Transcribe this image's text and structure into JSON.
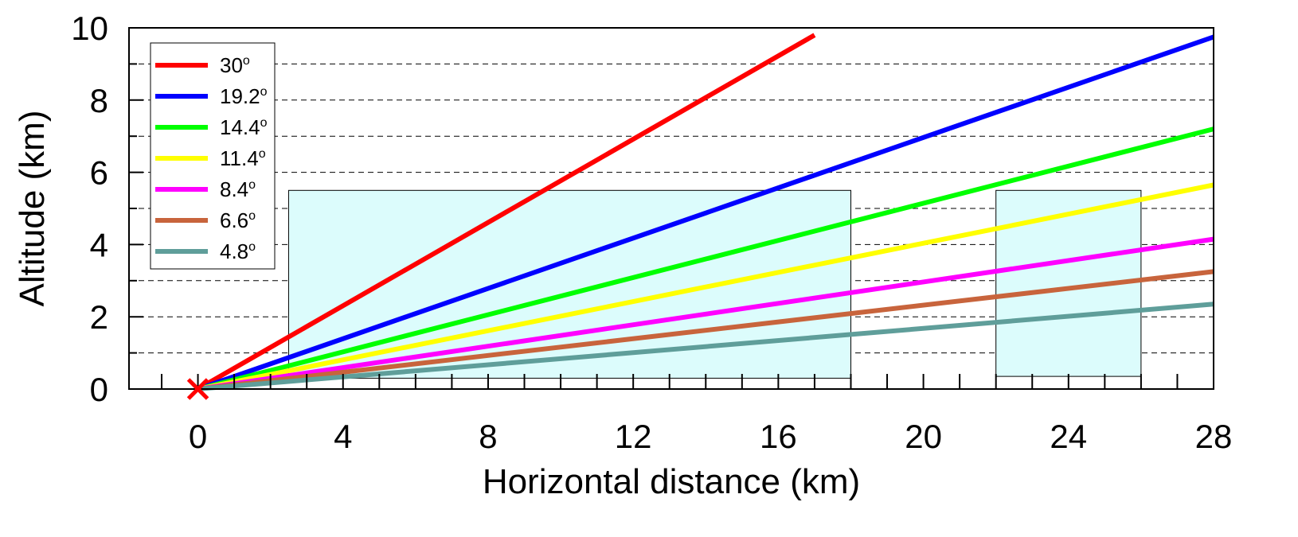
{
  "chart_data": {
    "type": "line",
    "xlabel": "Horizontal distance (km)",
    "ylabel": "Altitude (km)",
    "xlim": [
      -1.9,
      28
    ],
    "ylim": [
      0,
      10
    ],
    "x_ticks": [
      0,
      4,
      8,
      12,
      16,
      20,
      24,
      28
    ],
    "y_ticks": [
      0,
      2,
      4,
      6,
      8,
      10
    ],
    "grid": {
      "horizontal_dashed": true,
      "values": [
        1,
        2,
        3,
        4,
        5,
        6,
        7,
        8,
        9
      ]
    },
    "legend": {
      "placement": "top-left"
    },
    "origin_marker": {
      "x": 0,
      "y": 0,
      "symbol": "x",
      "color": "#ff0000"
    },
    "shaded_regions": [
      {
        "x": [
          2.5,
          18
        ],
        "y": [
          0.3,
          5.5
        ],
        "color": "#dcfcfc"
      },
      {
        "x": [
          22,
          26
        ],
        "y": [
          0.35,
          5.5
        ],
        "color": "#dcfcfc"
      }
    ],
    "series": [
      {
        "name": "30",
        "unit": "o",
        "color": "#ff0000",
        "x": [
          0,
          17
        ],
        "y": [
          0,
          9.8
        ]
      },
      {
        "name": "19.2",
        "unit": "o",
        "color": "#0000ff",
        "x": [
          0,
          28
        ],
        "y": [
          0,
          9.75
        ]
      },
      {
        "name": "14.4",
        "unit": "o",
        "color": "#00ff00",
        "x": [
          0,
          28
        ],
        "y": [
          0,
          7.2
        ]
      },
      {
        "name": "11.4",
        "unit": "o",
        "color": "#ffff00",
        "x": [
          0,
          28
        ],
        "y": [
          0,
          5.65
        ]
      },
      {
        "name": "8.4",
        "unit": "o",
        "color": "#ff00ff",
        "x": [
          0,
          28
        ],
        "y": [
          0,
          4.15
        ]
      },
      {
        "name": "6.6",
        "unit": "o",
        "color": "#c8643c",
        "x": [
          0,
          28
        ],
        "y": [
          0,
          3.25
        ]
      },
      {
        "name": "4.8",
        "unit": "o",
        "color": "#5f9e9a",
        "x": [
          0,
          28
        ],
        "y": [
          0,
          2.35
        ]
      }
    ]
  }
}
